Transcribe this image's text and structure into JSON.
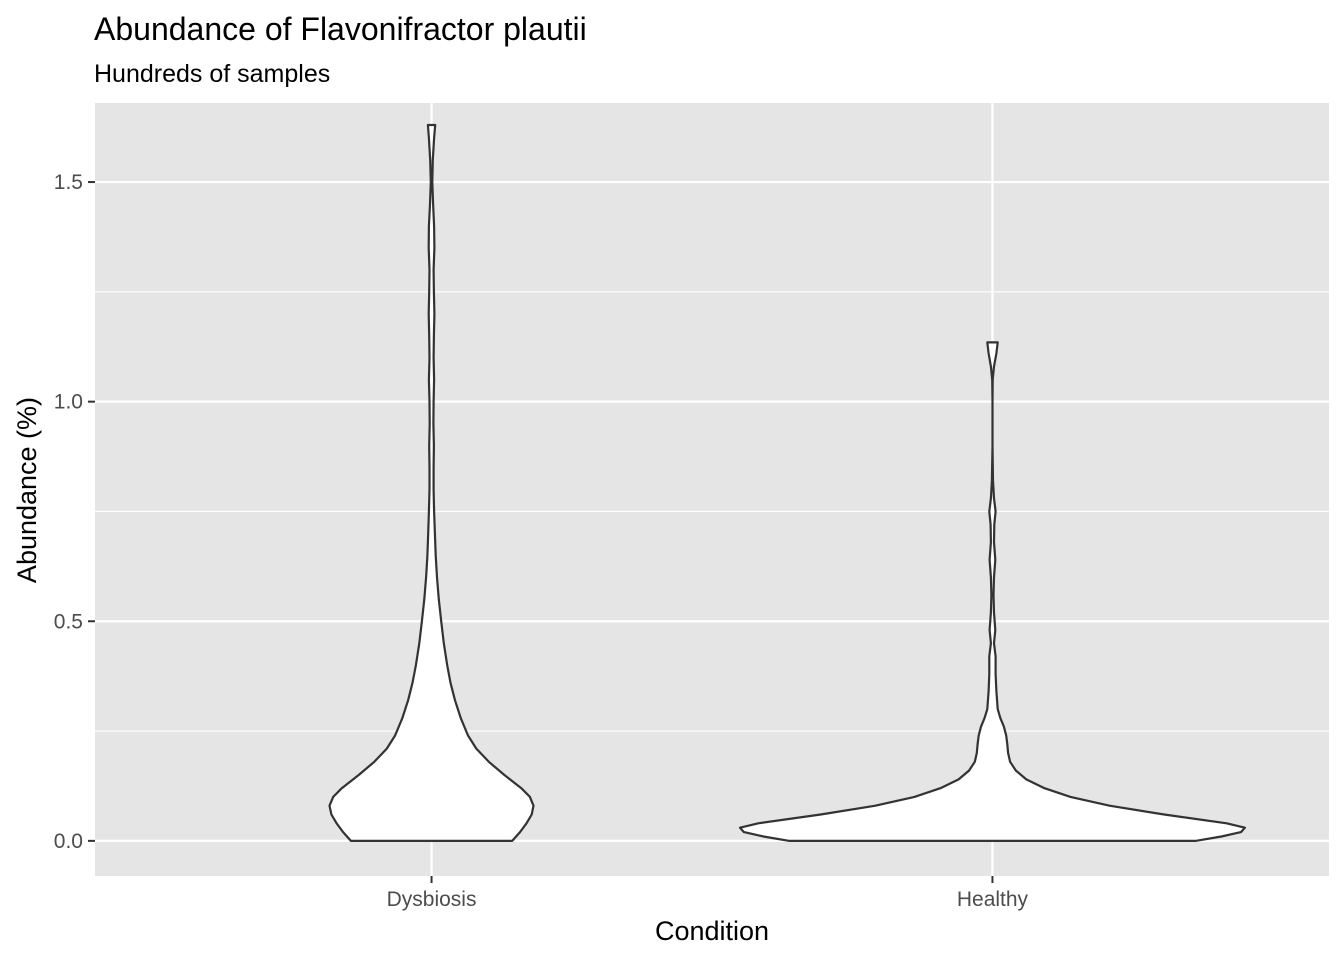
{
  "chart_data": {
    "type": "violin",
    "title": "Abundance of Flavonifractor plautii",
    "subtitle": "Hundreds of samples",
    "xlabel": "Condition",
    "ylabel": "Abundance (%)",
    "categories": [
      "Dysbiosis",
      "Healthy"
    ],
    "ylim": [
      -0.08,
      1.68
    ],
    "yticks": [
      0.0,
      0.5,
      1.0,
      1.5
    ],
    "ytick_labels": [
      "0.0",
      "0.5",
      "1.0",
      "1.5"
    ],
    "grid": true,
    "background": "#e5e5e5",
    "grid_color": "#ffffff",
    "violin_fill": "#ffffff",
    "violin_stroke": "#333333",
    "series": [
      {
        "category": "Dysbiosis",
        "density": [
          [
            0.0,
            0.31
          ],
          [
            0.02,
            0.34
          ],
          [
            0.04,
            0.365
          ],
          [
            0.06,
            0.385
          ],
          [
            0.08,
            0.392
          ],
          [
            0.1,
            0.378
          ],
          [
            0.12,
            0.345
          ],
          [
            0.15,
            0.28
          ],
          [
            0.18,
            0.22
          ],
          [
            0.21,
            0.172
          ],
          [
            0.24,
            0.14
          ],
          [
            0.28,
            0.112
          ],
          [
            0.32,
            0.09
          ],
          [
            0.36,
            0.073
          ],
          [
            0.4,
            0.06
          ],
          [
            0.45,
            0.047
          ],
          [
            0.5,
            0.037
          ],
          [
            0.55,
            0.028
          ],
          [
            0.6,
            0.021
          ],
          [
            0.65,
            0.016
          ],
          [
            0.7,
            0.013
          ],
          [
            0.75,
            0.01
          ],
          [
            0.8,
            0.008
          ],
          [
            0.85,
            0.008
          ],
          [
            0.9,
            0.009
          ],
          [
            0.95,
            0.007
          ],
          [
            1.0,
            0.008
          ],
          [
            1.05,
            0.01
          ],
          [
            1.1,
            0.008
          ],
          [
            1.15,
            0.009
          ],
          [
            1.2,
            0.011
          ],
          [
            1.25,
            0.009
          ],
          [
            1.3,
            0.008
          ],
          [
            1.35,
            0.011
          ],
          [
            1.4,
            0.01
          ],
          [
            1.45,
            0.006
          ],
          [
            1.5,
            0.003
          ],
          [
            1.55,
            0.005
          ],
          [
            1.6,
            0.01
          ],
          [
            1.63,
            0.014
          ]
        ]
      },
      {
        "category": "Healthy",
        "density": [
          [
            0.0,
            0.78
          ],
          [
            0.01,
            0.88
          ],
          [
            0.02,
            0.955
          ],
          [
            0.03,
            0.97
          ],
          [
            0.04,
            0.9
          ],
          [
            0.06,
            0.66
          ],
          [
            0.08,
            0.45
          ],
          [
            0.1,
            0.3
          ],
          [
            0.12,
            0.2
          ],
          [
            0.14,
            0.13
          ],
          [
            0.16,
            0.09
          ],
          [
            0.18,
            0.068
          ],
          [
            0.2,
            0.06
          ],
          [
            0.22,
            0.057
          ],
          [
            0.24,
            0.053
          ],
          [
            0.26,
            0.044
          ],
          [
            0.28,
            0.03
          ],
          [
            0.3,
            0.02
          ],
          [
            0.34,
            0.015
          ],
          [
            0.38,
            0.012
          ],
          [
            0.42,
            0.012
          ],
          [
            0.45,
            0.006
          ],
          [
            0.48,
            0.011
          ],
          [
            0.52,
            0.006
          ],
          [
            0.56,
            0.004
          ],
          [
            0.6,
            0.006
          ],
          [
            0.64,
            0.011
          ],
          [
            0.68,
            0.006
          ],
          [
            0.72,
            0.007
          ],
          [
            0.75,
            0.012
          ],
          [
            0.78,
            0.006
          ],
          [
            0.82,
            0.002
          ],
          [
            0.9,
            0.0
          ],
          [
            1.0,
            0.0
          ],
          [
            1.05,
            0.001
          ],
          [
            1.08,
            0.006
          ],
          [
            1.11,
            0.015
          ],
          [
            1.135,
            0.02
          ]
        ]
      }
    ]
  }
}
